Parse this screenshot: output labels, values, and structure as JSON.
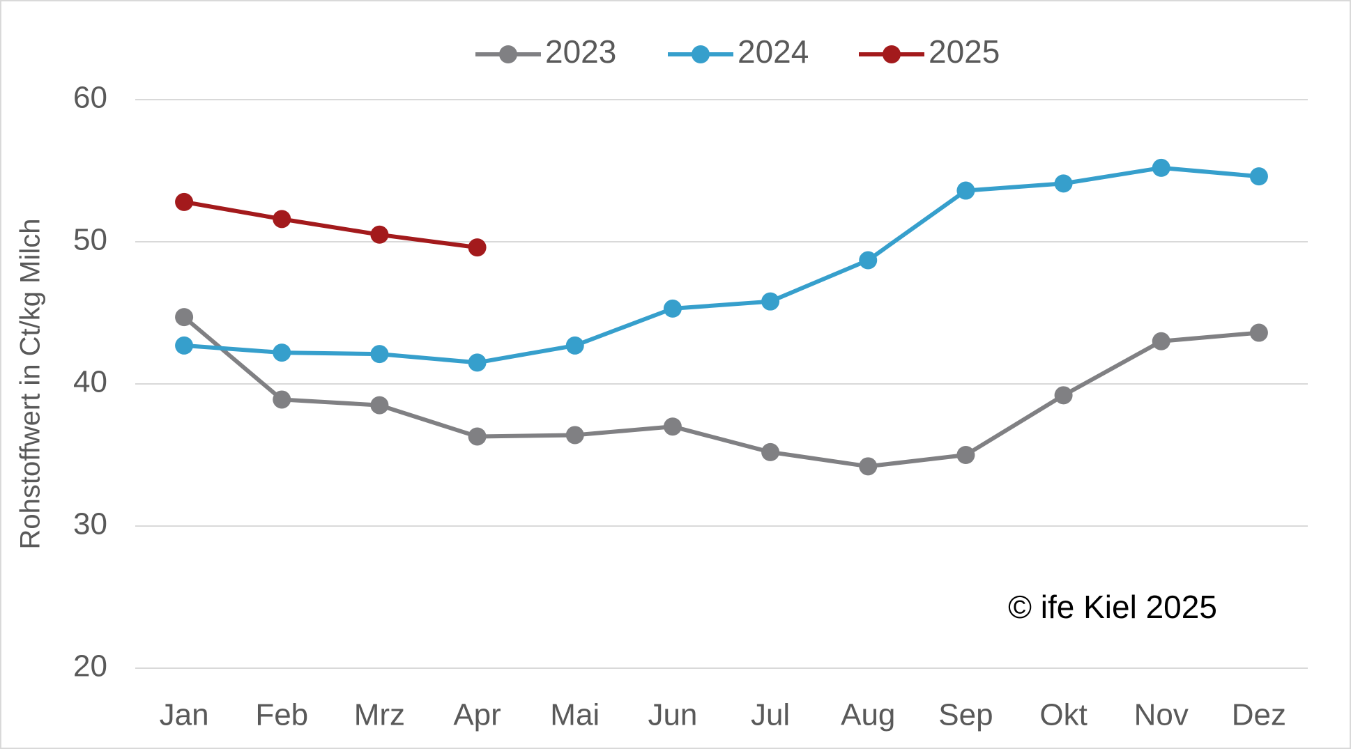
{
  "chart_data": {
    "type": "line",
    "ylabel": "Rohstoffwert in Ct/kg Milch",
    "annotation": "© ife Kiel 2025",
    "categories": [
      "Jan",
      "Feb",
      "Mrz",
      "Apr",
      "Mai",
      "Jun",
      "Jul",
      "Aug",
      "Sep",
      "Okt",
      "Nov",
      "Dez"
    ],
    "series": [
      {
        "name": "2023",
        "color": "#808083",
        "values": [
          44.7,
          38.9,
          38.5,
          36.3,
          36.4,
          37.0,
          35.2,
          34.2,
          35.0,
          39.2,
          43.0,
          43.6
        ]
      },
      {
        "name": "2024",
        "color": "#369fcc",
        "values": [
          42.7,
          42.2,
          42.1,
          41.5,
          42.7,
          45.3,
          45.8,
          48.7,
          53.6,
          54.1,
          55.2,
          54.6
        ]
      },
      {
        "name": "2025",
        "color": "#a31a1c",
        "values": [
          52.8,
          51.6,
          50.5,
          49.6,
          null,
          null,
          null,
          null,
          null,
          null,
          null,
          null
        ]
      }
    ],
    "ylim": [
      20,
      60
    ],
    "yticks": [
      20,
      30,
      40,
      50,
      60
    ],
    "grid": true,
    "legend": "top"
  }
}
